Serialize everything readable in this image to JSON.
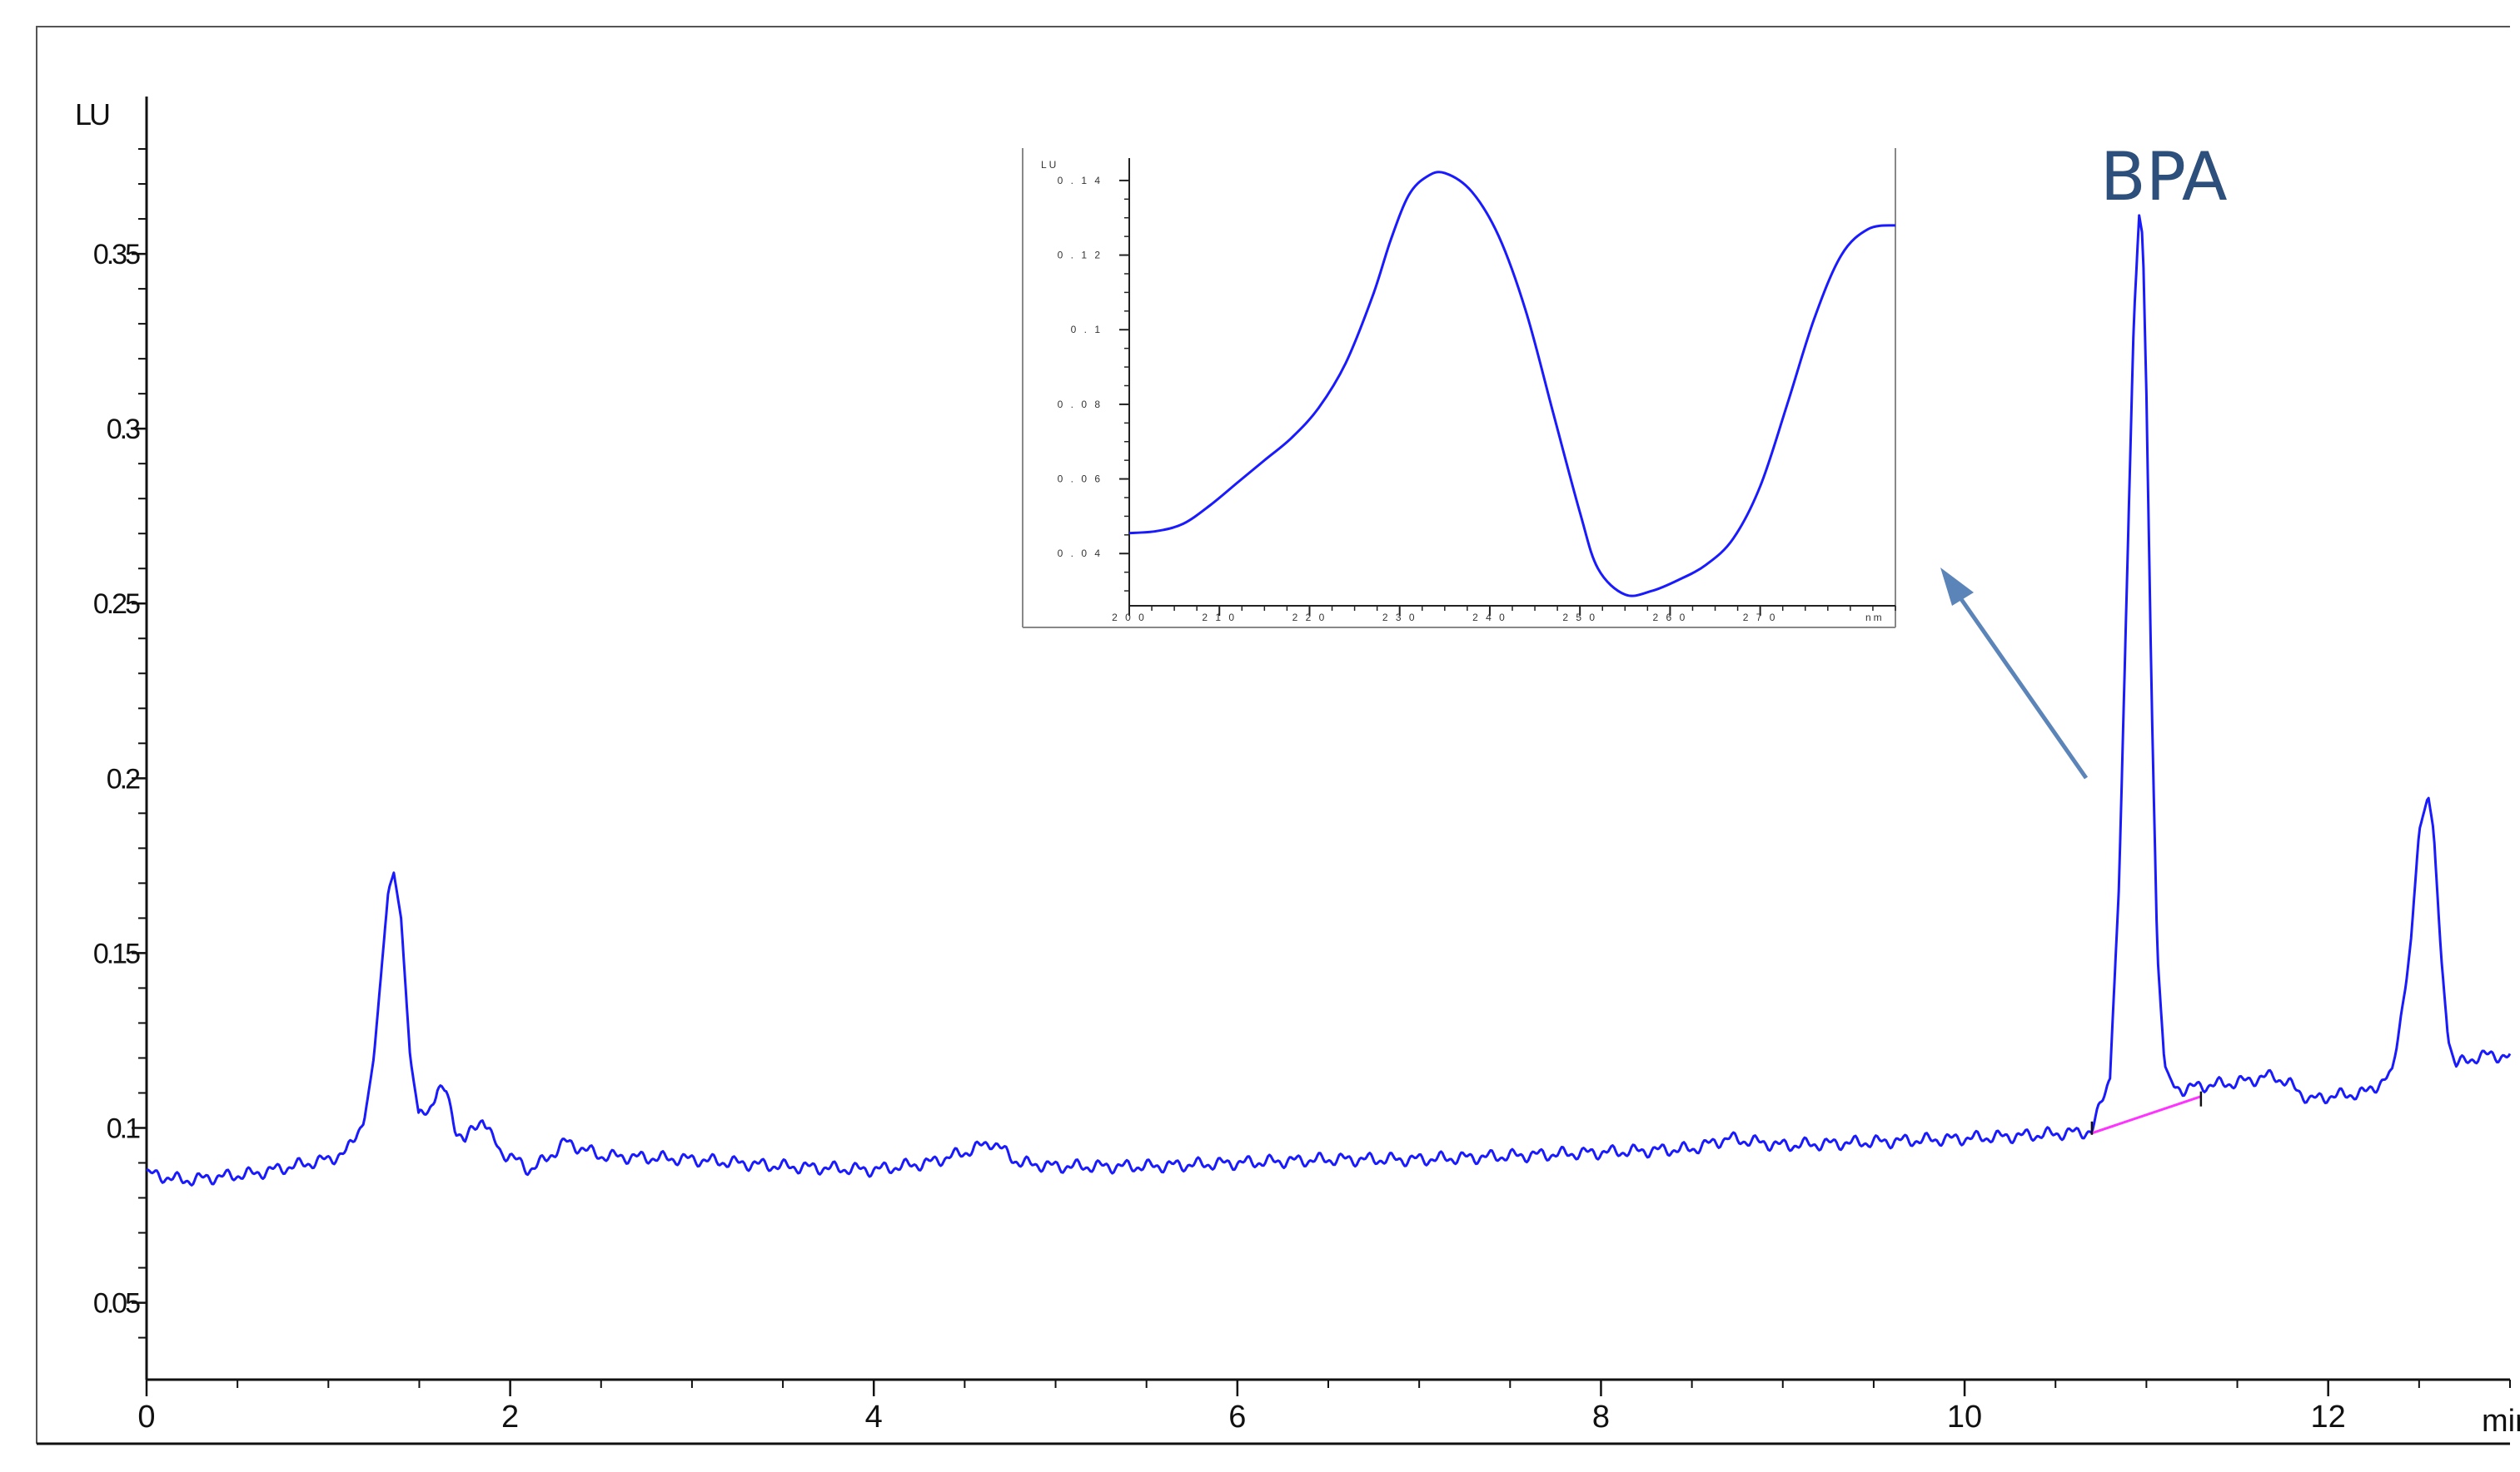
{
  "chart_data": [
    {
      "type": "line",
      "title": "",
      "xlabel": "min",
      "ylabel": "LU",
      "xlim": [
        0,
        13
      ],
      "ylim": [
        0.028,
        0.395
      ],
      "x_ticks": [
        0,
        2,
        4,
        6,
        8,
        10,
        12
      ],
      "x_tick_labels": [
        "0",
        "2",
        "4",
        "6",
        "8",
        "10",
        "12"
      ],
      "y_ticks": [
        0.05,
        0.1,
        0.15,
        0.2,
        0.25,
        0.3,
        0.35
      ],
      "y_tick_labels": [
        "0.05",
        "0.1",
        "0.15",
        "0.2",
        "0.25",
        "0.3",
        "0.35"
      ],
      "grid": false,
      "series": [
        {
          "color": "#1a1aff",
          "x": [
            0.0,
            0.2,
            0.4,
            0.6,
            0.8,
            1.0,
            1.1,
            1.2,
            1.25,
            1.3,
            1.33,
            1.36,
            1.4,
            1.45,
            1.5,
            1.55,
            1.6,
            1.65,
            1.7,
            1.75,
            1.8,
            1.85,
            1.9,
            1.95,
            2.0,
            2.1,
            2.2,
            2.3,
            2.5,
            3.0,
            3.5,
            4.0,
            4.3,
            4.5,
            4.65,
            4.8,
            5.0,
            5.5,
            6.0,
            6.5,
            7.0,
            7.5,
            8.0,
            8.5,
            8.7,
            9.0,
            9.5,
            10.0,
            10.4,
            10.7,
            10.8,
            10.85,
            10.9,
            10.93,
            10.96,
            10.98,
            11.0,
            11.03,
            11.06,
            11.1,
            11.15,
            11.2,
            11.3,
            11.5,
            11.7,
            11.8,
            11.9,
            12.0,
            12.2,
            12.35,
            12.45,
            12.5,
            12.55,
            12.58,
            12.62,
            12.66,
            12.7,
            12.8,
            12.9,
            13.0
          ],
          "y": [
            0.087,
            0.085,
            0.086,
            0.087,
            0.089,
            0.091,
            0.093,
            0.103,
            0.12,
            0.15,
            0.168,
            0.173,
            0.16,
            0.12,
            0.103,
            0.105,
            0.111,
            0.11,
            0.1,
            0.096,
            0.1,
            0.103,
            0.097,
            0.093,
            0.092,
            0.088,
            0.091,
            0.096,
            0.092,
            0.091,
            0.089,
            0.088,
            0.09,
            0.093,
            0.096,
            0.09,
            0.089,
            0.089,
            0.09,
            0.091,
            0.091,
            0.092,
            0.093,
            0.094,
            0.097,
            0.095,
            0.096,
            0.097,
            0.098,
            0.099,
            0.115,
            0.17,
            0.27,
            0.33,
            0.361,
            0.355,
            0.31,
            0.22,
            0.15,
            0.118,
            0.112,
            0.111,
            0.112,
            0.113,
            0.115,
            0.112,
            0.108,
            0.109,
            0.11,
            0.115,
            0.15,
            0.185,
            0.195,
            0.185,
            0.15,
            0.125,
            0.118,
            0.12,
            0.121,
            0.12
          ]
        }
      ],
      "baseline_segment": {
        "color": "#ff33ff",
        "x": [
          10.7,
          11.3
        ],
        "y": [
          0.0985,
          0.109
        ]
      },
      "annotations": [
        {
          "text": "BPA",
          "x": 11.05,
          "y": 0.375
        }
      ]
    },
    {
      "type": "line",
      "title": "",
      "xlabel": "nm",
      "ylabel": "LU",
      "xlim": [
        200,
        285
      ],
      "ylim": [
        0.026,
        0.146
      ],
      "x_ticks": [
        200,
        210,
        220,
        230,
        240,
        250,
        260,
        270
      ],
      "x_tick_labels": [
        "2 0 0",
        "2 1 0",
        "2 2 0",
        "2 3 0",
        "2 4 0",
        "2 5 0",
        "2 6 0",
        "2 7 0"
      ],
      "y_ticks": [
        0.04,
        0.06,
        0.08,
        0.1,
        0.12,
        0.14
      ],
      "y_tick_labels": [
        "0 . 0 4",
        "0 . 0 6",
        "0 . 0 8",
        "0 . 1",
        "0 . 1 2",
        "0 . 1 4"
      ],
      "grid": false,
      "series": [
        {
          "color": "#1a1aff",
          "x": [
            200,
            203,
            206,
            209,
            212,
            215,
            218,
            221,
            224,
            227,
            229,
            231,
            233,
            235,
            238,
            241,
            244,
            247,
            250,
            252,
            255,
            258,
            261,
            264,
            267,
            270,
            273,
            276,
            279,
            282,
            285
          ],
          "y": [
            0.0455,
            0.046,
            0.048,
            0.053,
            0.059,
            0.065,
            0.071,
            0.079,
            0.091,
            0.109,
            0.124,
            0.136,
            0.141,
            0.142,
            0.137,
            0.125,
            0.105,
            0.078,
            0.051,
            0.036,
            0.029,
            0.03,
            0.033,
            0.037,
            0.044,
            0.058,
            0.08,
            0.103,
            0.12,
            0.127,
            0.128
          ]
        }
      ]
    }
  ]
}
